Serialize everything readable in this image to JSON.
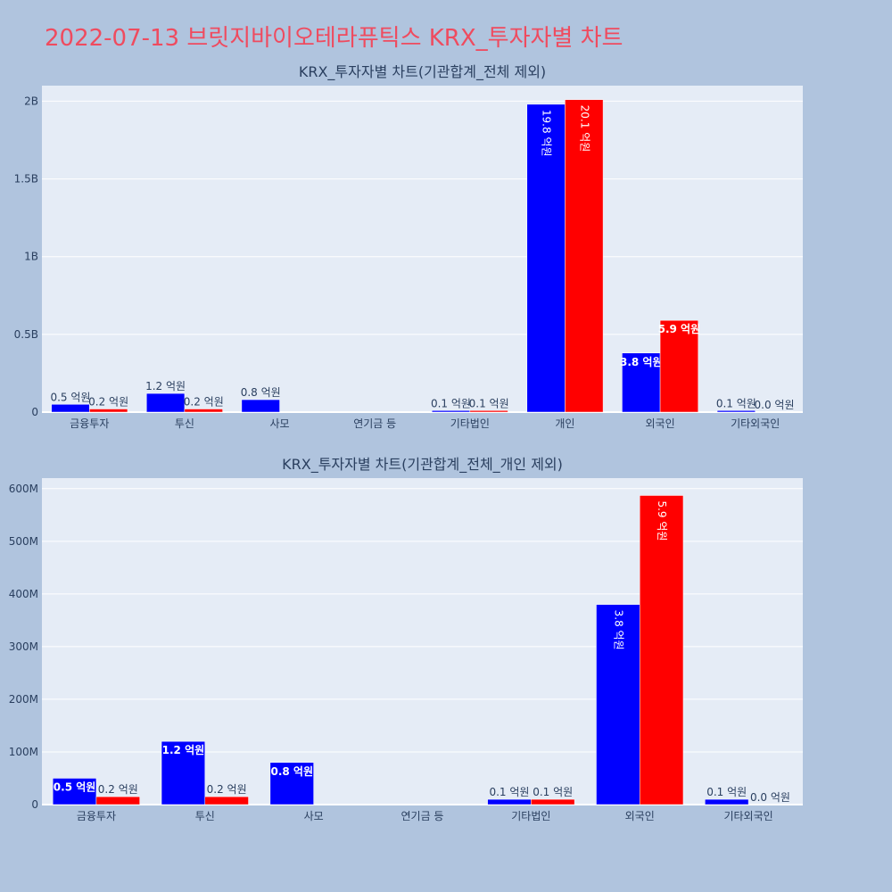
{
  "page_title": "2022-07-13 브릿지바이오테라퓨틱스 KRX_투자자별 차트",
  "colors": {
    "background": "#b0c4de",
    "plot_bg": "#e5ecf6",
    "title": "#ef4b5f",
    "series_blue": "#0000ff",
    "series_red": "#ff0000",
    "text": "#2a3f5f"
  },
  "chart_data": [
    {
      "type": "bar",
      "title": "KRX_투자자별 차트(기관합계_전체 제외)",
      "categories": [
        "금융투자",
        "투신",
        "사모",
        "연기금 등",
        "기타법인",
        "개인",
        "외국인",
        "기타외국인"
      ],
      "series": [
        {
          "color": "#0000ff",
          "values": [
            50000000,
            120000000,
            80000000,
            0,
            10000000,
            1980000000,
            380000000,
            10000000
          ],
          "labels": [
            "0.5 억원",
            "1.2 억원",
            "0.8 억원",
            "",
            "0.1 억원",
            "19.8 억원",
            "3.8 억원",
            "0.1 억원"
          ]
        },
        {
          "color": "#ff0000",
          "values": [
            20000000,
            20000000,
            0,
            0,
            10000000,
            2010000000,
            590000000,
            0
          ],
          "labels": [
            "0.2 억원",
            "0.2 억원",
            "",
            "",
            "0.1 억원",
            "20.1 억원",
            "5.9 억원",
            "0.0 억원"
          ]
        }
      ],
      "ylim": [
        0,
        2100000000
      ],
      "yticks": [
        0,
        500000000,
        1000000000,
        1500000000,
        2000000000
      ],
      "ytick_labels": [
        "0",
        "0.5B",
        "1B",
        "1.5B",
        "2B"
      ],
      "grid": true
    },
    {
      "type": "bar",
      "title": "KRX_투자자별 차트(기관합계_전체_개인 제외)",
      "categories": [
        "금융투자",
        "투신",
        "사모",
        "연기금 등",
        "기타법인",
        "외국인",
        "기타외국인"
      ],
      "series": [
        {
          "color": "#0000ff",
          "values": [
            50000000,
            120000000,
            80000000,
            0,
            10000000,
            380000000,
            10000000
          ],
          "labels": [
            "0.5 억원",
            "1.2 억원",
            "0.8 억원",
            "",
            "0.1 억원",
            "3.8 억원",
            "0.1 억원"
          ]
        },
        {
          "color": "#ff0000",
          "values": [
            15000000,
            15000000,
            0,
            0,
            10000000,
            587000000,
            0
          ],
          "labels": [
            "0.2 억원",
            "0.2 억원",
            "",
            "",
            "0.1 억원",
            "5.9 억원",
            "0.0 억원"
          ]
        }
      ],
      "ylim": [
        0,
        620000000
      ],
      "yticks": [
        0,
        100000000,
        200000000,
        300000000,
        400000000,
        500000000,
        600000000
      ],
      "ytick_labels": [
        "0",
        "100M",
        "200M",
        "300M",
        "400M",
        "500M",
        "600M"
      ],
      "grid": true
    }
  ]
}
